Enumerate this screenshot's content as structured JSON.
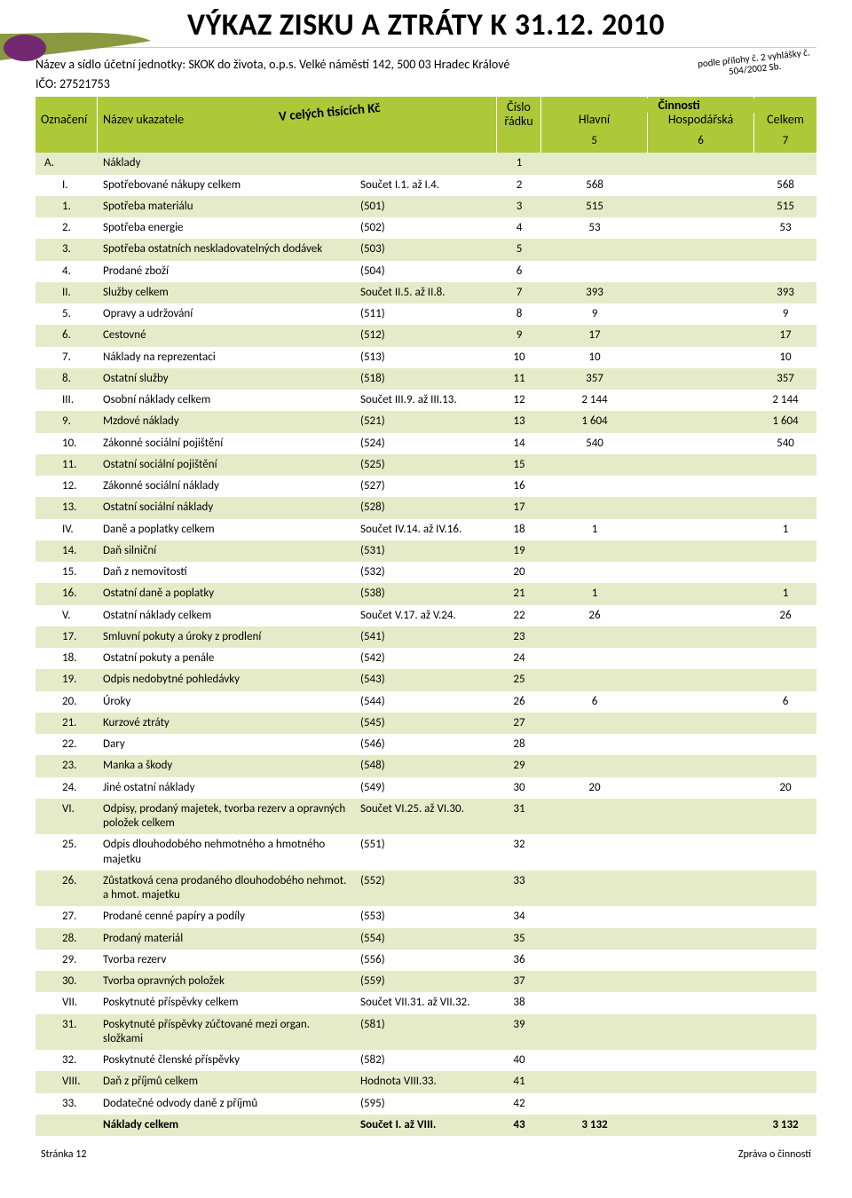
{
  "colors": {
    "header_bg": "#aec937",
    "row_alt_bg": "#e5ebc8",
    "swoosh_olive": "#8a9940",
    "swoosh_purple": "#73296f",
    "thin_line": "#cdd97a"
  },
  "title": "VÝKAZ ZISKU A ZTRÁTY K 31.12. 2010",
  "entity_line": "Název a sídlo účetní jednotky: SKOK do života, o.p.s. Velké náměstí 142, 500 03 Hradec Králové",
  "ico_line": "IČO: 27521753",
  "stamp_line1": "podle přílohy č. 2 vyhlášky č.",
  "stamp_line2": "504/2002 Sb.",
  "hdr": {
    "oznaceni": "Označení",
    "nazev": "Název ukazatele",
    "tisic": "V celých tisících Kč",
    "cislo": "Číslo",
    "radku": "řádku",
    "cinnosti": "Činnosti",
    "hlavni": "Hlavní",
    "hosp": "Hospodářská",
    "celkem": "Celkem",
    "n5": "5",
    "n6": "6",
    "n7": "7"
  },
  "rows": [
    {
      "oz": "A.",
      "ind": 0,
      "name": "Náklady",
      "code": "",
      "row": "1",
      "hl": "",
      "ho": "",
      "ce": "",
      "alt": 1
    },
    {
      "oz": "I.",
      "ind": 1,
      "name": "Spotřebované nákupy celkem",
      "code": "Součet I.1. až I.4.",
      "row": "2",
      "hl": "568",
      "ho": "",
      "ce": "568",
      "alt": 0
    },
    {
      "oz": "1.",
      "ind": 1,
      "name": "Spotřeba materiálu",
      "code": "(501)",
      "row": "3",
      "hl": "515",
      "ho": "",
      "ce": "515",
      "alt": 1
    },
    {
      "oz": "2.",
      "ind": 1,
      "name": "Spotřeba energie",
      "code": "(502)",
      "row": "4",
      "hl": "53",
      "ho": "",
      "ce": "53",
      "alt": 0
    },
    {
      "oz": "3.",
      "ind": 1,
      "name": "Spotřeba ostatních neskladovatelných dodávek",
      "code": "(503)",
      "row": "5",
      "hl": "",
      "ho": "",
      "ce": "",
      "alt": 1
    },
    {
      "oz": "4.",
      "ind": 1,
      "name": "Prodané zboží",
      "code": "(504)",
      "row": "6",
      "hl": "",
      "ho": "",
      "ce": "",
      "alt": 0
    },
    {
      "oz": "II.",
      "ind": 1,
      "name": "Služby celkem",
      "code": "Součet II.5. až II.8.",
      "row": "7",
      "hl": "393",
      "ho": "",
      "ce": "393",
      "alt": 1
    },
    {
      "oz": "5.",
      "ind": 1,
      "name": "Opravy a udržování",
      "code": "(511)",
      "row": "8",
      "hl": "9",
      "ho": "",
      "ce": "9",
      "alt": 0
    },
    {
      "oz": "6.",
      "ind": 1,
      "name": "Cestovné",
      "code": "(512)",
      "row": "9",
      "hl": "17",
      "ho": "",
      "ce": "17",
      "alt": 1
    },
    {
      "oz": "7.",
      "ind": 1,
      "name": "Náklady na reprezentaci",
      "code": "(513)",
      "row": "10",
      "hl": "10",
      "ho": "",
      "ce": "10",
      "alt": 0
    },
    {
      "oz": "8.",
      "ind": 1,
      "name": "Ostatní služby",
      "code": "(518)",
      "row": "11",
      "hl": "357",
      "ho": "",
      "ce": "357",
      "alt": 1
    },
    {
      "oz": "III.",
      "ind": 1,
      "name": "Osobní náklady celkem",
      "code": "Součet III.9. až III.13.",
      "row": "12",
      "hl": "2 144",
      "ho": "",
      "ce": "2 144",
      "alt": 0
    },
    {
      "oz": "9.",
      "ind": 1,
      "name": "Mzdové náklady",
      "code": "(521)",
      "row": "13",
      "hl": "1 604",
      "ho": "",
      "ce": "1 604",
      "alt": 1
    },
    {
      "oz": "10.",
      "ind": 1,
      "name": "Zákonné sociální pojištění",
      "code": "(524)",
      "row": "14",
      "hl": "540",
      "ho": "",
      "ce": "540",
      "alt": 0
    },
    {
      "oz": "11.",
      "ind": 1,
      "name": "Ostatní sociální pojištění",
      "code": "(525)",
      "row": "15",
      "hl": "",
      "ho": "",
      "ce": "",
      "alt": 1
    },
    {
      "oz": "12.",
      "ind": 1,
      "name": "Zákonné sociální náklady",
      "code": "(527)",
      "row": "16",
      "hl": "",
      "ho": "",
      "ce": "",
      "alt": 0
    },
    {
      "oz": "13.",
      "ind": 1,
      "name": "Ostatní sociální náklady",
      "code": "(528)",
      "row": "17",
      "hl": "",
      "ho": "",
      "ce": "",
      "alt": 1
    },
    {
      "oz": "IV.",
      "ind": 1,
      "name": "Daně a poplatky celkem",
      "code": "Součet IV.14. až IV.16.",
      "row": "18",
      "hl": "1",
      "ho": "",
      "ce": "1",
      "alt": 0
    },
    {
      "oz": "14.",
      "ind": 1,
      "name": "Daň silniční",
      "code": "(531)",
      "row": "19",
      "hl": "",
      "ho": "",
      "ce": "",
      "alt": 1
    },
    {
      "oz": "15.",
      "ind": 1,
      "name": "Daň z nemovitostí",
      "code": "(532)",
      "row": "20",
      "hl": "",
      "ho": "",
      "ce": "",
      "alt": 0
    },
    {
      "oz": "16.",
      "ind": 1,
      "name": "Ostatní daně a poplatky",
      "code": "(538)",
      "row": "21",
      "hl": "1",
      "ho": "",
      "ce": "1",
      "alt": 1
    },
    {
      "oz": "V.",
      "ind": 1,
      "name": "Ostatní náklady celkem",
      "code": "Součet V.17. až V.24.",
      "row": "22",
      "hl": "26",
      "ho": "",
      "ce": "26",
      "alt": 0
    },
    {
      "oz": "17.",
      "ind": 1,
      "name": "Smluvní pokuty a úroky z prodlení",
      "code": "(541)",
      "row": "23",
      "hl": "",
      "ho": "",
      "ce": "",
      "alt": 1
    },
    {
      "oz": "18.",
      "ind": 1,
      "name": "Ostatní pokuty a penále",
      "code": "(542)",
      "row": "24",
      "hl": "",
      "ho": "",
      "ce": "",
      "alt": 0
    },
    {
      "oz": "19.",
      "ind": 1,
      "name": "Odpis nedobytné pohledávky",
      "code": "(543)",
      "row": "25",
      "hl": "",
      "ho": "",
      "ce": "",
      "alt": 1
    },
    {
      "oz": "20.",
      "ind": 1,
      "name": "Úroky",
      "code": "(544)",
      "row": "26",
      "hl": "6",
      "ho": "",
      "ce": "6",
      "alt": 0
    },
    {
      "oz": "21.",
      "ind": 1,
      "name": "Kurzové ztráty",
      "code": "(545)",
      "row": "27",
      "hl": "",
      "ho": "",
      "ce": "",
      "alt": 1
    },
    {
      "oz": "22.",
      "ind": 1,
      "name": "Dary",
      "code": "(546)",
      "row": "28",
      "hl": "",
      "ho": "",
      "ce": "",
      "alt": 0
    },
    {
      "oz": "23.",
      "ind": 1,
      "name": "Manka a škody",
      "code": "(548)",
      "row": "29",
      "hl": "",
      "ho": "",
      "ce": "",
      "alt": 1
    },
    {
      "oz": "24.",
      "ind": 1,
      "name": "Jiné ostatní náklady",
      "code": "(549)",
      "row": "30",
      "hl": "20",
      "ho": "",
      "ce": "20",
      "alt": 0
    },
    {
      "oz": "VI.",
      "ind": 1,
      "name": "Odpisy, prodaný majetek, tvorba rezerv a opravných položek celkem",
      "code": "Součet VI.25. až VI.30.",
      "row": "31",
      "hl": "",
      "ho": "",
      "ce": "",
      "alt": 1
    },
    {
      "oz": "25.",
      "ind": 1,
      "name": "Odpis dlouhodobého nehmotného a hmotného majetku",
      "code": "(551)",
      "row": "32",
      "hl": "",
      "ho": "",
      "ce": "",
      "alt": 0
    },
    {
      "oz": "26.",
      "ind": 1,
      "name": "Zůstatková cena prodaného dlouhodobého nehmot. a hmot. majetku",
      "code": "(552)",
      "row": "33",
      "hl": "",
      "ho": "",
      "ce": "",
      "alt": 1
    },
    {
      "oz": "27.",
      "ind": 1,
      "name": "Prodané cenné papíry a podíly",
      "code": "(553)",
      "row": "34",
      "hl": "",
      "ho": "",
      "ce": "",
      "alt": 0
    },
    {
      "oz": "28.",
      "ind": 1,
      "name": "Prodaný materiál",
      "code": "(554)",
      "row": "35",
      "hl": "",
      "ho": "",
      "ce": "",
      "alt": 1
    },
    {
      "oz": "29.",
      "ind": 1,
      "name": "Tvorba rezerv",
      "code": "(556)",
      "row": "36",
      "hl": "",
      "ho": "",
      "ce": "",
      "alt": 0
    },
    {
      "oz": "30.",
      "ind": 1,
      "name": "Tvorba opravných položek",
      "code": "(559)",
      "row": "37",
      "hl": "",
      "ho": "",
      "ce": "",
      "alt": 1
    },
    {
      "oz": "VII.",
      "ind": 1,
      "name": "Poskytnuté příspěvky celkem",
      "code": "Součet VII.31. až VII.32.",
      "row": "38",
      "hl": "",
      "ho": "",
      "ce": "",
      "alt": 0
    },
    {
      "oz": "31.",
      "ind": 1,
      "name": "Poskytnuté příspěvky zúčtované mezi organ. složkami",
      "code": "(581)",
      "row": "39",
      "hl": "",
      "ho": "",
      "ce": "",
      "alt": 1
    },
    {
      "oz": "32.",
      "ind": 1,
      "name": "Poskytnuté členské příspěvky",
      "code": "(582)",
      "row": "40",
      "hl": "",
      "ho": "",
      "ce": "",
      "alt": 0
    },
    {
      "oz": "VIII.",
      "ind": 1,
      "name": "Daň z příjmů celkem",
      "code": "Hodnota VIII.33.",
      "row": "41",
      "hl": "",
      "ho": "",
      "ce": "",
      "alt": 1
    },
    {
      "oz": "33.",
      "ind": 1,
      "name": "Dodatečné odvody daně z příjmů",
      "code": "(595)",
      "row": "42",
      "hl": "",
      "ho": "",
      "ce": "",
      "alt": 0
    }
  ],
  "total": {
    "oz": "",
    "name": "Náklady celkem",
    "code": "Součet I. až VIII.",
    "row": "43",
    "hl": "3 132",
    "ho": "",
    "ce": "3 132"
  },
  "footer_left": "Stránka 12",
  "footer_right": "Zpráva o činnosti"
}
